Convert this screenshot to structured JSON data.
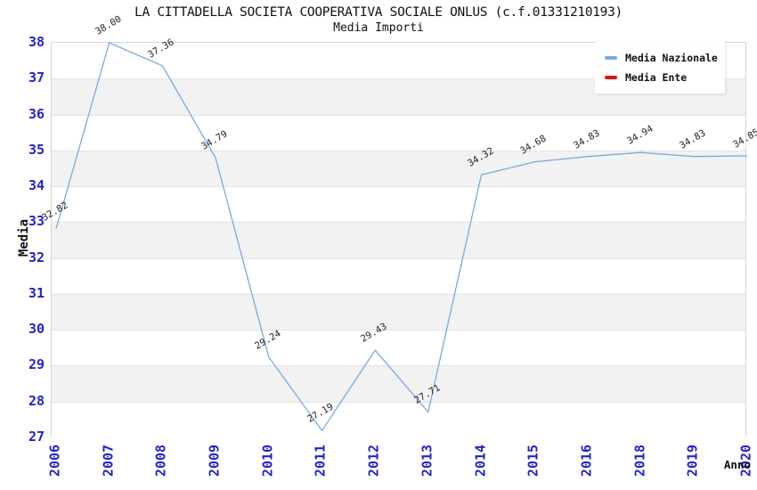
{
  "header": {
    "title": "LA CITTADELLA SOCIETA COOPERATIVA SOCIALE ONLUS (c.f.01331210193)",
    "subtitle": "Media Importi"
  },
  "legend": {
    "items": [
      {
        "label": "Media Nazionale",
        "color": "#78aae1"
      },
      {
        "label": "Media Ente",
        "color": "#e01111"
      }
    ]
  },
  "chart_data": {
    "type": "line",
    "title": "LA CITTADELLA SOCIETA COOPERATIVA SOCIALE ONLUS (c.f.01331210193)",
    "subtitle": "Media Importi",
    "xlabel": "Anno",
    "ylabel": "Media",
    "categories": [
      "2006",
      "2007",
      "2008",
      "2009",
      "2010",
      "2011",
      "2012",
      "2013",
      "2014",
      "2015",
      "2016",
      "2018",
      "2019",
      "2020"
    ],
    "series": [
      {
        "name": "Media Nazionale",
        "color": "#78aae1",
        "values": [
          32.82,
          38.0,
          37.36,
          34.79,
          29.24,
          27.19,
          29.43,
          27.71,
          34.32,
          34.68,
          34.83,
          34.94,
          34.83,
          34.85
        ],
        "point_labels": [
          "32.82",
          "38.00",
          "37.36",
          "34.79",
          "29.24",
          "27.19",
          "29.43",
          "27.71",
          "34.32",
          "34.68",
          "34.83",
          "34.94",
          "34.83",
          "34.85"
        ]
      },
      {
        "name": "Media Ente",
        "color": "#e01111",
        "values": []
      }
    ],
    "ylim": [
      27,
      38
    ],
    "yticks": [
      27,
      28,
      29,
      30,
      31,
      32,
      33,
      34,
      35,
      36,
      37,
      38
    ],
    "grid": "horizontal-bands",
    "band_colors": [
      "#ffffff",
      "#f2f2f2"
    ],
    "grid_color": "#e3e3e3",
    "frame_color": "#d4d4d4",
    "tick_label_color": "#2222cc",
    "legend_position": "top-right"
  }
}
